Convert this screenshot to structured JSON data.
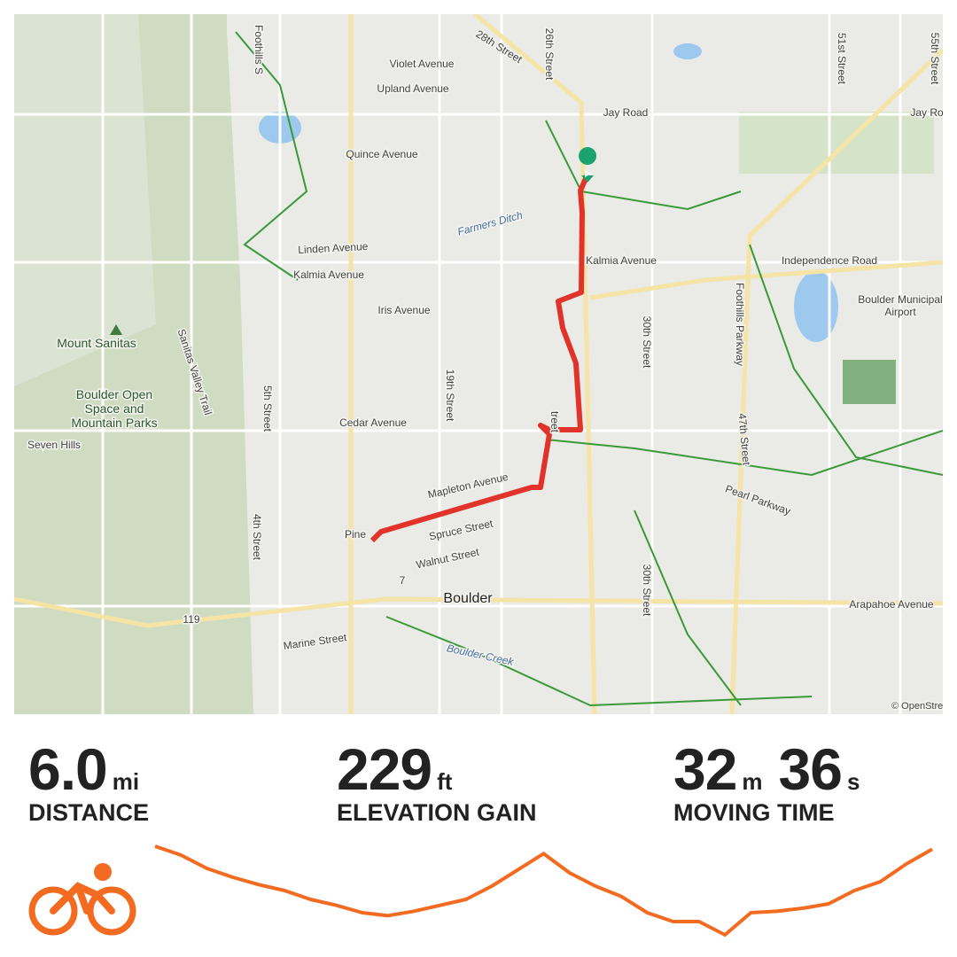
{
  "map": {
    "labels": [
      "Violet Avenue",
      "Upland Avenue",
      "Quince Avenue",
      "Jay Road",
      "Jay Ro",
      "Linden Avenue",
      "Kalmia Avenue",
      "Kalmia Avenue",
      "Iris Avenue",
      "Cedar Avenue",
      "Mapleton Avenue",
      "Spruce Street",
      "Walnut Street",
      "Pine",
      "Boulder",
      "Marine Street",
      "Mount Sanitas",
      "Boulder Open",
      "Space and",
      "Mountain Parks",
      "Seven Hills",
      "Independence Road",
      "Boulder Municipal",
      "Airport",
      "Pearl Parkway",
      "Arapahoe Avenue",
      "Boulder Creek",
      "Farmers Ditch",
      "28th Street",
      "26th Street",
      "19th Street",
      "5th Street",
      "4th Street",
      "30th Street",
      "30th Street",
      "Foothills Parkway",
      "47th Street",
      "51st Street",
      "55th Street",
      "Sanitas Valley Trail",
      "Foothills S",
      "119",
      "7",
      "© OpenStreetMap",
      "treet"
    ]
  },
  "stats": [
    {
      "value": "6.0",
      "unit": "mi",
      "label": "DISTANCE"
    },
    {
      "value": "229",
      "unit": "ft",
      "label": "ELEVATION GAIN"
    },
    {
      "value": "32",
      "unit": "m",
      "value2": "36",
      "unit2": "s",
      "label": "MOVING TIME"
    }
  ],
  "elevation_profile": [
    5394,
    5382,
    5364,
    5352,
    5342,
    5334,
    5322,
    5314,
    5304,
    5300,
    5306,
    5314,
    5322,
    5340,
    5362,
    5384,
    5358,
    5340,
    5326,
    5304,
    5292,
    5292,
    5274,
    5304,
    5306,
    5310,
    5316,
    5334,
    5346,
    5370,
    5390
  ]
}
